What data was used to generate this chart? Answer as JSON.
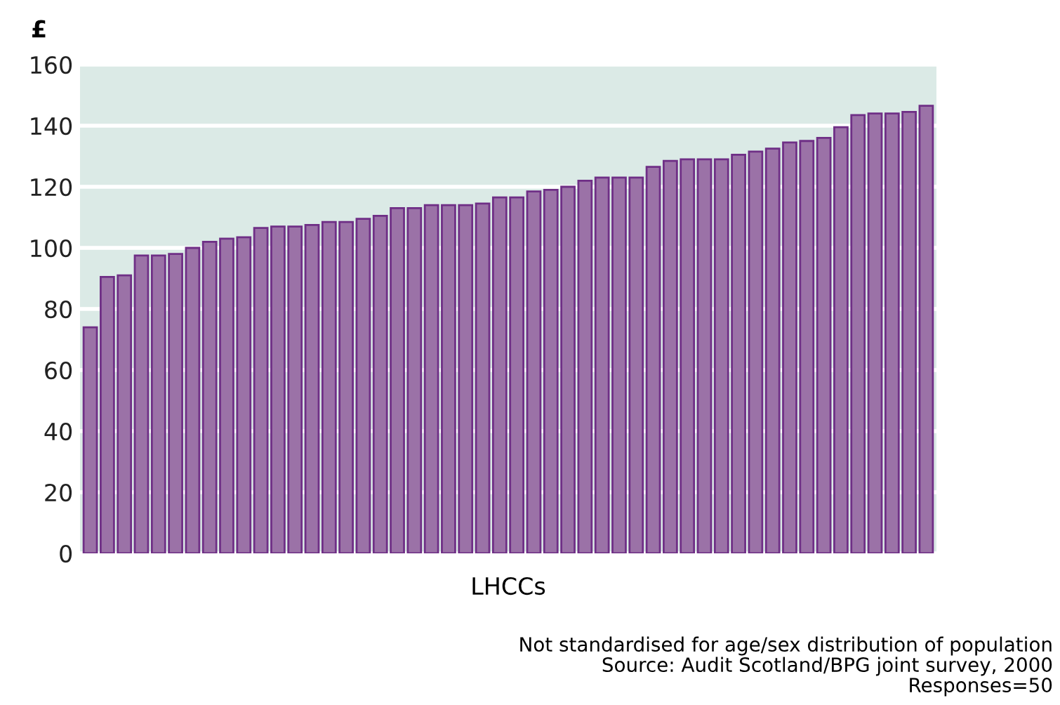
{
  "chart_data": {
    "type": "bar",
    "ylabel": "£",
    "xlabel": "LHCCs",
    "categories": [
      null,
      null,
      null,
      null,
      null,
      null,
      null,
      null,
      null,
      null,
      null,
      null,
      null,
      null,
      null,
      null,
      null,
      null,
      null,
      null,
      null,
      null,
      null,
      null,
      null,
      null,
      null,
      null,
      null,
      null,
      null,
      null,
      null,
      null,
      null,
      null,
      null,
      null,
      null,
      null,
      null,
      null,
      null,
      null,
      null,
      null,
      null,
      null,
      null,
      null
    ],
    "values": [
      74,
      90.5,
      91,
      97.5,
      97.5,
      98,
      100,
      102,
      103,
      103.5,
      106.5,
      107,
      107,
      107.5,
      108.5,
      108.5,
      109.5,
      110.5,
      113,
      113,
      114,
      114,
      114,
      114.5,
      116.5,
      116.5,
      118.5,
      119,
      120,
      122,
      123,
      123,
      123,
      126.5,
      128.5,
      129,
      129,
      129,
      130.5,
      131.5,
      132.5,
      134.5,
      135,
      136,
      139.5,
      143.5,
      144,
      144,
      144.5,
      146.5
    ],
    "color": "#9b72a7",
    "ylim": [
      0,
      160
    ],
    "yticks": [
      0,
      20,
      40,
      60,
      80,
      100,
      120,
      140,
      160
    ],
    "grid": "y",
    "tick_labels": "y",
    "annotations": [
      "Not standardised for age/sex distribution of population",
      "Source: Audit Scotland/BPG joint survey, 2000",
      "Responses=50"
    ]
  }
}
